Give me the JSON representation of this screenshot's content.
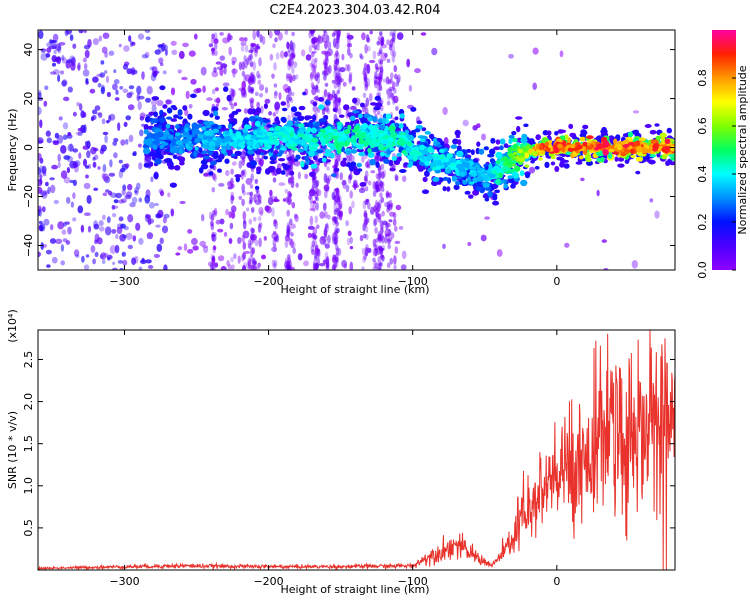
{
  "title": "C2E4.2023.304.03.42.R04",
  "colors": {
    "snr_line": "#e8322b",
    "colormap": [
      "#8f00ff",
      "#4b00ff",
      "#0010ff",
      "#0090ff",
      "#00ffff",
      "#00ff60",
      "#80ff00",
      "#ffff00",
      "#ff9900",
      "#ff2000",
      "#ff00a0"
    ]
  },
  "chart_data": [
    {
      "type": "heatmap",
      "name": "spectrogram",
      "xlabel": "Height of straight line (km)",
      "ylabel": "Frequency (Hz)",
      "xlim": [
        -360,
        82
      ],
      "ylim": [
        -50,
        48
      ],
      "x_ticks": [
        -300,
        -200,
        -100,
        0
      ],
      "y_ticks": [
        40,
        20,
        0,
        -20,
        -40
      ],
      "colorbar": {
        "label": "Normalized spectral amplitude",
        "range": [
          0.0,
          1.0
        ],
        "ticks": [
          0.0,
          0.2,
          0.4,
          0.6,
          0.8
        ]
      },
      "band_ridge": [
        {
          "x": -275,
          "y": 3,
          "amp": 0.3
        },
        {
          "x": -200,
          "y": 4,
          "amp": 0.4
        },
        {
          "x": -150,
          "y": 4,
          "amp": 0.45
        },
        {
          "x": -110,
          "y": 4,
          "amp": 0.45
        },
        {
          "x": -95,
          "y": -2,
          "amp": 0.4
        },
        {
          "x": -80,
          "y": -6,
          "amp": 0.4
        },
        {
          "x": -60,
          "y": -9,
          "amp": 0.35
        },
        {
          "x": -48,
          "y": -12,
          "amp": 0.35
        },
        {
          "x": -35,
          "y": -6,
          "amp": 0.5
        },
        {
          "x": -20,
          "y": -2,
          "amp": 0.65
        },
        {
          "x": -10,
          "y": 0,
          "amp": 0.85
        },
        {
          "x": 10,
          "y": 0,
          "amp": 0.9
        },
        {
          "x": 80,
          "y": 0,
          "amp": 0.85
        }
      ]
    },
    {
      "type": "line",
      "name": "snr",
      "xlabel": "Height of straight line (km)",
      "ylabel": "SNR (10 * v/v)",
      "y_multiplier": "(x10⁴)",
      "xlim": [
        -360,
        82
      ],
      "ylim": [
        0,
        2.85
      ],
      "x_ticks": [
        -300,
        -200,
        -100,
        0
      ],
      "y_ticks": [
        0.5,
        1.0,
        1.5,
        2.0,
        2.5
      ],
      "envelope": [
        {
          "x": -360,
          "y": 0.02
        },
        {
          "x": -260,
          "y": 0.05
        },
        {
          "x": -200,
          "y": 0.04
        },
        {
          "x": -150,
          "y": 0.04
        },
        {
          "x": -100,
          "y": 0.05
        },
        {
          "x": -90,
          "y": 0.15
        },
        {
          "x": -70,
          "y": 0.3
        },
        {
          "x": -55,
          "y": 0.15
        },
        {
          "x": -45,
          "y": 0.05
        },
        {
          "x": -35,
          "y": 0.25
        },
        {
          "x": -25,
          "y": 0.55
        },
        {
          "x": -10,
          "y": 0.9
        },
        {
          "x": 0,
          "y": 1.1
        },
        {
          "x": 20,
          "y": 1.35
        },
        {
          "x": 40,
          "y": 1.55
        },
        {
          "x": 60,
          "y": 1.7
        },
        {
          "x": 82,
          "y": 1.8
        }
      ]
    }
  ]
}
